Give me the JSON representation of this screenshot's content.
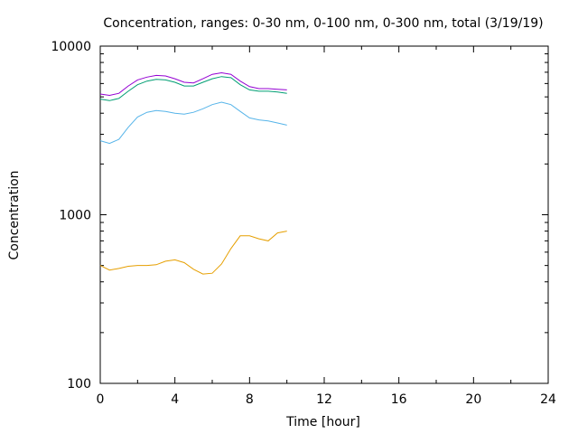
{
  "chart_data": {
    "type": "line",
    "title": "Concentration, ranges: 0-30 nm, 0-100 nm, 0-300 nm, total (3/19/19)",
    "xlabel": "Time [hour]",
    "ylabel": "Concentration",
    "xlim": [
      0,
      24
    ],
    "ylim": [
      100,
      10000
    ],
    "yscale": "log",
    "grid": false,
    "legend": "none",
    "x_ticks": [
      "0",
      "4",
      "8",
      "12",
      "16",
      "20",
      "24"
    ],
    "y_ticks": [
      "100",
      "1000",
      "10000"
    ],
    "x": [
      0,
      0.5,
      1,
      1.5,
      2,
      2.5,
      3,
      3.5,
      4,
      4.5,
      5,
      5.5,
      6,
      6.5,
      7,
      7.5,
      8,
      8.5,
      9,
      9.5,
      10
    ],
    "series": [
      {
        "color": "#e69f00",
        "values": [
          500,
          470,
          480,
          495,
          500,
          500,
          505,
          530,
          540,
          520,
          475,
          445,
          450,
          510,
          630,
          750,
          750,
          720,
          700,
          780,
          800
        ]
      },
      {
        "color": "#56b4e9",
        "values": [
          2750,
          2650,
          2800,
          3300,
          3800,
          4050,
          4150,
          4100,
          4000,
          3950,
          4050,
          4250,
          4500,
          4650,
          4500,
          4100,
          3750,
          3650,
          3600,
          3500,
          3400
        ]
      },
      {
        "color": "#009e73",
        "values": [
          4850,
          4750,
          4900,
          5400,
          5900,
          6200,
          6350,
          6300,
          6100,
          5800,
          5800,
          6100,
          6400,
          6600,
          6500,
          5900,
          5500,
          5400,
          5400,
          5350,
          5250
        ]
      },
      {
        "color": "#9400d3",
        "values": [
          5200,
          5100,
          5250,
          5800,
          6300,
          6550,
          6700,
          6650,
          6400,
          6100,
          6050,
          6400,
          6800,
          6950,
          6800,
          6200,
          5750,
          5600,
          5600,
          5550,
          5500
        ]
      }
    ]
  }
}
